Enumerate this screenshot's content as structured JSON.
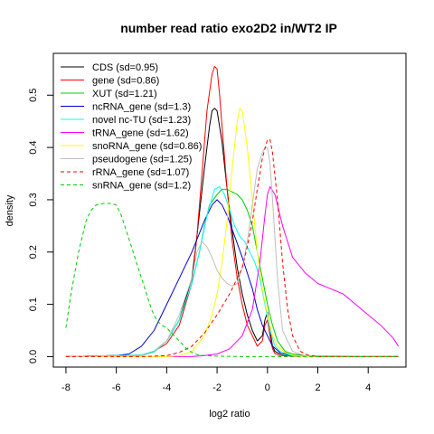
{
  "chart_data": {
    "type": "line",
    "title": "number read ratio exo2D2 in/WT2 IP",
    "xlabel": "log2 ratio",
    "ylabel": "density",
    "xlim": [
      -8.5,
      5.5
    ],
    "ylim": [
      -0.02,
      0.58
    ],
    "x_ticks": [
      "-8",
      "-6",
      "-4",
      "-2",
      "0",
      "2",
      "4"
    ],
    "y_ticks": [
      "0.0",
      "0.1",
      "0.2",
      "0.3",
      "0.4",
      "0.5"
    ],
    "grid": false,
    "legend_position": "top-left",
    "series": [
      {
        "name": "CDS (sd=0.95)",
        "color": "#000000",
        "dash": false,
        "x": [
          -8,
          -5,
          -4.5,
          -4,
          -3.5,
          -3,
          -2.8,
          -2.5,
          -2.3,
          -2.2,
          -2.1,
          -2,
          -1.8,
          -1.6,
          -1.4,
          -1.2,
          -1,
          -0.8,
          -0.6,
          -0.4,
          -0.2,
          -0.1,
          0,
          0.1,
          0.2,
          0.3,
          0.5,
          1,
          1.5,
          2,
          5.2
        ],
        "y": [
          0,
          0.003,
          0.01,
          0.03,
          0.07,
          0.15,
          0.23,
          0.36,
          0.44,
          0.47,
          0.475,
          0.47,
          0.41,
          0.32,
          0.24,
          0.17,
          0.12,
          0.08,
          0.05,
          0.03,
          0.04,
          0.07,
          0.085,
          0.05,
          0.02,
          0.01,
          0.005,
          0.002,
          0.001,
          0,
          0
        ]
      },
      {
        "name": "gene (sd=0.86)",
        "color": "#ff0000",
        "dash": false,
        "x": [
          -8,
          -5,
          -4.5,
          -4,
          -3.5,
          -3,
          -2.8,
          -2.6,
          -2.4,
          -2.2,
          -2.1,
          -2,
          -1.9,
          -1.8,
          -1.6,
          -1.4,
          -1.2,
          -1,
          -0.8,
          -0.6,
          -0.4,
          -0.2,
          -0.1,
          0,
          0.1,
          0.2,
          0.3,
          0.5,
          1,
          2,
          5.2
        ],
        "y": [
          0,
          0.003,
          0.01,
          0.025,
          0.06,
          0.14,
          0.23,
          0.35,
          0.47,
          0.54,
          0.555,
          0.55,
          0.5,
          0.44,
          0.32,
          0.22,
          0.15,
          0.1,
          0.06,
          0.04,
          0.02,
          0.03,
          0.06,
          0.07,
          0.04,
          0.015,
          0.006,
          0.002,
          0.001,
          0,
          0
        ]
      },
      {
        "name": "XUT (sd=1.21)",
        "color": "#00cc00",
        "dash": false,
        "x": [
          -8,
          -5,
          -4.5,
          -4,
          -3.5,
          -3,
          -2.7,
          -2.5,
          -2.3,
          -2,
          -1.8,
          -1.6,
          -1.4,
          -1.2,
          -1,
          -0.8,
          -0.6,
          -0.4,
          -0.2,
          0,
          0.2,
          0.4,
          0.7,
          1,
          1.5,
          2,
          5.2
        ],
        "y": [
          0,
          0.003,
          0.01,
          0.03,
          0.07,
          0.14,
          0.2,
          0.25,
          0.29,
          0.31,
          0.32,
          0.32,
          0.315,
          0.31,
          0.3,
          0.28,
          0.25,
          0.2,
          0.15,
          0.1,
          0.06,
          0.03,
          0.01,
          0.005,
          0.002,
          0,
          0
        ]
      },
      {
        "name": "ncRNA_gene (sd=1.3)",
        "color": "#0000cc",
        "dash": false,
        "x": [
          -8,
          -6,
          -5.5,
          -5,
          -4.5,
          -4,
          -3.5,
          -3,
          -2.5,
          -2.2,
          -2,
          -1.8,
          -1.6,
          -1.3,
          -1,
          -0.8,
          -0.6,
          -0.4,
          -0.2,
          0,
          0.2,
          0.5,
          1,
          1.5,
          2,
          5.2
        ],
        "y": [
          0,
          0.002,
          0.005,
          0.02,
          0.05,
          0.1,
          0.15,
          0.2,
          0.26,
          0.29,
          0.3,
          0.29,
          0.27,
          0.23,
          0.19,
          0.16,
          0.13,
          0.09,
          0.06,
          0.04,
          0.02,
          0.008,
          0.003,
          0.001,
          0,
          0
        ]
      },
      {
        "name": "novel nc-TU (sd=1.23)",
        "color": "#00ffff",
        "dash": false,
        "x": [
          -8,
          -5,
          -4.5,
          -4,
          -3.5,
          -3,
          -2.7,
          -2.4,
          -2.1,
          -1.9,
          -1.7,
          -1.5,
          -1.3,
          -1.1,
          -0.9,
          -0.7,
          -0.5,
          -0.3,
          -0.1,
          0.1,
          0.3,
          0.6,
          1,
          1.5,
          2,
          5.2
        ],
        "y": [
          0,
          0.003,
          0.01,
          0.03,
          0.07,
          0.14,
          0.2,
          0.27,
          0.32,
          0.325,
          0.31,
          0.28,
          0.25,
          0.23,
          0.22,
          0.2,
          0.18,
          0.15,
          0.1,
          0.05,
          0.02,
          0.006,
          0.002,
          0.001,
          0,
          0
        ]
      },
      {
        "name": "tRNA_gene (sd=1.62)",
        "color": "#ff00ff",
        "dash": false,
        "x": [
          -8,
          -3,
          -2.5,
          -2,
          -1.5,
          -1,
          -0.6,
          -0.3,
          -0.1,
          0,
          0.1,
          0.3,
          0.6,
          1,
          1.5,
          2,
          2.5,
          3,
          3.5,
          4,
          4.5,
          5,
          5.2
        ],
        "y": [
          0,
          0,
          0.002,
          0.005,
          0.015,
          0.04,
          0.09,
          0.18,
          0.27,
          0.31,
          0.325,
          0.31,
          0.25,
          0.19,
          0.16,
          0.14,
          0.13,
          0.12,
          0.1,
          0.08,
          0.06,
          0.035,
          0.02
        ]
      },
      {
        "name": "snoRNA_gene (sd=0.86)",
        "color": "#ffff00",
        "dash": false,
        "x": [
          -8,
          -4,
          -3.5,
          -3,
          -2.5,
          -2.2,
          -2,
          -1.8,
          -1.6,
          -1.4,
          -1.2,
          -1.1,
          -1,
          -0.8,
          -0.6,
          -0.4,
          -0.2,
          0,
          0.2,
          0.4,
          0.7,
          1,
          1.5,
          5.2
        ],
        "y": [
          0,
          0,
          0.002,
          0.01,
          0.04,
          0.08,
          0.12,
          0.18,
          0.26,
          0.36,
          0.45,
          0.475,
          0.47,
          0.4,
          0.3,
          0.2,
          0.13,
          0.08,
          0.04,
          0.02,
          0.008,
          0.003,
          0,
          0
        ]
      },
      {
        "name": "pseudogene (sd=1.25)",
        "color": "#bebebe",
        "dash": false,
        "x": [
          -8,
          -5,
          -4.5,
          -4,
          -3.5,
          -3,
          -2.8,
          -2.6,
          -2.4,
          -2.2,
          -2,
          -1.8,
          -1.6,
          -1.4,
          -1.2,
          -1,
          -0.8,
          -0.6,
          -0.4,
          -0.2,
          -0.1,
          0,
          0.1,
          0.2,
          0.4,
          0.6,
          1,
          1.5,
          5.2
        ],
        "y": [
          0,
          0.002,
          0.008,
          0.03,
          0.08,
          0.15,
          0.2,
          0.22,
          0.21,
          0.19,
          0.165,
          0.15,
          0.14,
          0.135,
          0.14,
          0.17,
          0.22,
          0.29,
          0.36,
          0.39,
          0.4,
          0.4,
          0.37,
          0.3,
          0.15,
          0.05,
          0.01,
          0.002,
          0
        ]
      },
      {
        "name": "rRNA_gene (sd=1.07)",
        "color": "#ff0000",
        "dash": true,
        "x": [
          -8,
          -5,
          -4,
          -3.5,
          -3,
          -2.5,
          -2,
          -1.5,
          -1.2,
          -1,
          -0.8,
          -0.6,
          -0.4,
          -0.2,
          0,
          0.1,
          0.2,
          0.4,
          0.6,
          0.8,
          1,
          1.3,
          1.6,
          2,
          5.2
        ],
        "y": [
          0,
          0,
          0.002,
          0.008,
          0.02,
          0.045,
          0.08,
          0.12,
          0.15,
          0.17,
          0.21,
          0.26,
          0.32,
          0.38,
          0.415,
          0.415,
          0.39,
          0.3,
          0.18,
          0.09,
          0.04,
          0.01,
          0.003,
          0,
          0
        ]
      },
      {
        "name": "snRNA_gene (sd=1.2)",
        "color": "#00cc00",
        "dash": true,
        "x": [
          -8,
          -7.8,
          -7.5,
          -7.2,
          -7,
          -6.8,
          -6.5,
          -6.2,
          -6,
          -5.8,
          -5.6,
          -5.4,
          -5.2,
          -5,
          -4.8,
          -4.6,
          -4.4,
          -4.2,
          -4,
          -3.8,
          -3.6,
          -3.4,
          -3.2,
          -3,
          -2.8,
          -2.5,
          -2,
          -1,
          0,
          2,
          5.2
        ],
        "y": [
          0.055,
          0.12,
          0.2,
          0.26,
          0.28,
          0.29,
          0.293,
          0.293,
          0.29,
          0.27,
          0.24,
          0.21,
          0.18,
          0.15,
          0.12,
          0.09,
          0.07,
          0.06,
          0.055,
          0.045,
          0.035,
          0.025,
          0.015,
          0.008,
          0.004,
          0.002,
          0.001,
          0,
          0,
          0,
          0
        ]
      }
    ]
  }
}
